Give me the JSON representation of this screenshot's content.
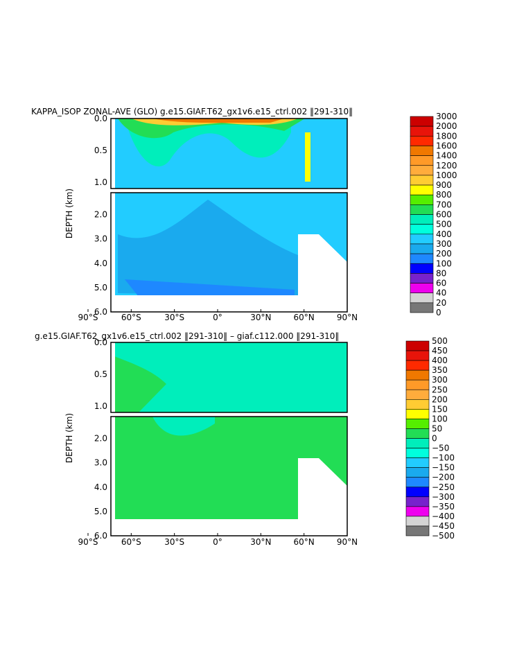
{
  "chart_data": [
    {
      "type": "heatmap",
      "title": "KAPPA_ISOP ZONAL-AVE (GLO) g.e15.GIAF.T62_gx1v6.e15_ctrl.002 ‖291-310‖",
      "ylabel": "DEPTH (km)",
      "xlabel": "",
      "x_ticks": [
        "90°S",
        "60°S",
        "30°S",
        "0°",
        "30°N",
        "60°N",
        "90°N"
      ],
      "y_ticks_upper": [
        "0.0",
        "0.5",
        "1.0"
      ],
      "y_ticks_lower": [
        "2.0",
        "3.0",
        "4.0",
        "5.0",
        "6.0"
      ],
      "ylim_upper": [
        0.0,
        1.1
      ],
      "ylim_lower": [
        1.1,
        6.0
      ],
      "xlim": [
        -90,
        90
      ],
      "colorbar_labels": [
        "3000",
        "2000",
        "1800",
        "1600",
        "1400",
        "1200",
        "1000",
        "900",
        "800",
        "700",
        "600",
        "500",
        "400",
        "300",
        "200",
        "100",
        "80",
        "60",
        "40",
        "20",
        "0"
      ],
      "colorbar_colors": [
        "#cc0000",
        "#e8140a",
        "#ff2a00",
        "#f07800",
        "#ff9a28",
        "#ffac3c",
        "#ffcc33",
        "#ffff00",
        "#55ee00",
        "#22dd55",
        "#00eebb",
        "#00ffdd",
        "#22ccff",
        "#1aaaee",
        "#1e88ff",
        "#0000ff",
        "#7722cc",
        "#ee00ee",
        "#d4d4d4",
        "#777777"
      ],
      "level_colors_by_value": {
        "bottom": "#1e88ff",
        "deep": "#1aaaee",
        "mid": "#22ccff",
        "mid2": "#00eebb",
        "surface1": "#22dd55",
        "surface2": "#ffcc33",
        "surface3": "#f07800",
        "surface4": "#cc0000"
      }
    },
    {
      "type": "heatmap",
      "title": "g.e15.GIAF.T62_gx1v6.e15_ctrl.002 ‖291-310‖ – giaf.c112.000 ‖291-310‖",
      "ylabel": "DEPTH (km)",
      "xlabel": "",
      "x_ticks": [
        "90°S",
        "60°S",
        "30°S",
        "0°",
        "30°N",
        "60°N",
        "90°N"
      ],
      "y_ticks_upper": [
        "0.0",
        "0.5",
        "1.0"
      ],
      "y_ticks_lower": [
        "2.0",
        "3.0",
        "4.0",
        "5.0",
        "6.0"
      ],
      "ylim_upper": [
        0.0,
        1.1
      ],
      "ylim_lower": [
        1.1,
        6.0
      ],
      "xlim": [
        -90,
        90
      ],
      "colorbar_labels": [
        "500",
        "450",
        "400",
        "350",
        "300",
        "250",
        "200",
        "150",
        "100",
        "50",
        "0",
        "−50",
        "−100",
        "−150",
        "−200",
        "−250",
        "−300",
        "−350",
        "−400",
        "−450",
        "−500"
      ],
      "colorbar_colors": [
        "#cc0000",
        "#e8140a",
        "#ff2a00",
        "#f07800",
        "#ff9a28",
        "#ffac3c",
        "#ffcc33",
        "#ffff00",
        "#55ee00",
        "#22dd55",
        "#00eebb",
        "#00ffdd",
        "#22ccff",
        "#1aaaee",
        "#1e88ff",
        "#0000ff",
        "#7722cc",
        "#ee00ee",
        "#d4d4d4",
        "#777777"
      ]
    }
  ]
}
